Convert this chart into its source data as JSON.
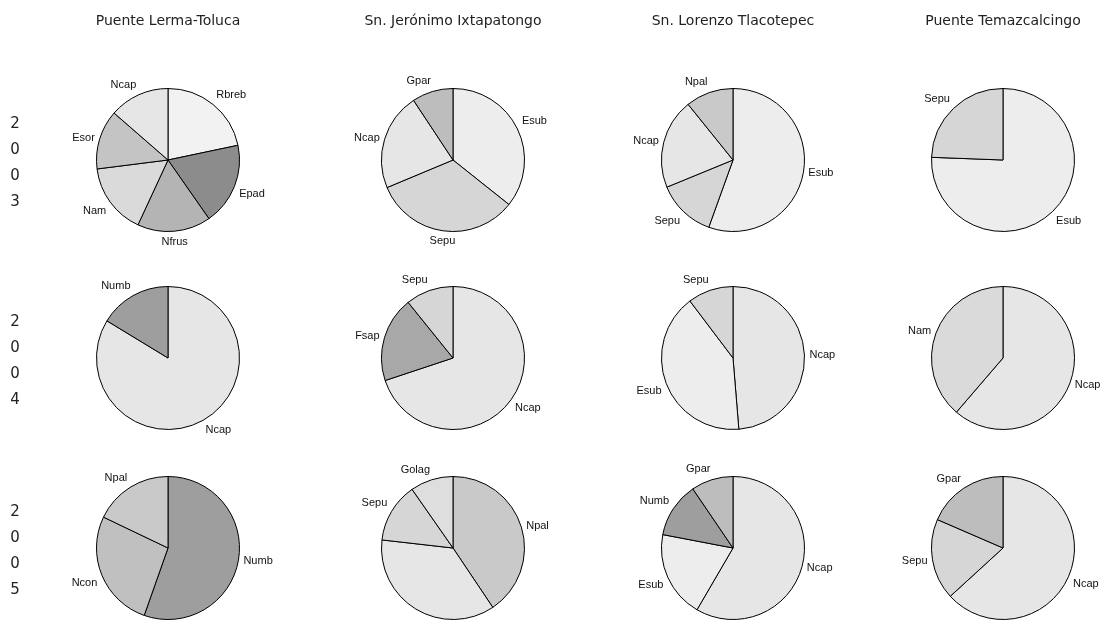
{
  "chart_data": [
    {
      "type": "pie",
      "title": "Puente Lerma-Toluca",
      "ylabel": "2003",
      "categories": [
        "Rbreb",
        "Epad",
        "Nfrus",
        "Nam",
        "Esor",
        "Ncap"
      ],
      "values": [
        21.7,
        18.6,
        16.6,
        16.1,
        13.4,
        13.6
      ],
      "colors": [
        "#f2f2f2",
        "#8c8c8c",
        "#b4b4b4",
        "#dadada",
        "#c4c4c4",
        "#e6e6e6"
      ],
      "legend": false
    },
    {
      "type": "pie",
      "title": "Sn. Jerónimo Ixtapatongo",
      "categories": [
        "Esub",
        "Sepu",
        "Ncap",
        "Gpar"
      ],
      "values": [
        35.7,
        33,
        22,
        9.3
      ],
      "colors": [
        "#ededed",
        "#d6d6d6",
        "#e6e6e6",
        "#bdbdbd"
      ],
      "legend": false
    },
    {
      "type": "pie",
      "title": "Sn. Lorenzo Tlacotepec",
      "categories": [
        "Esub",
        "Sepu",
        "Ncap",
        "Npal"
      ],
      "values": [
        55.5,
        13.3,
        20.4,
        10.8
      ],
      "colors": [
        "#ededed",
        "#d6d6d6",
        "#e6e6e6",
        "#c9c9c9"
      ],
      "legend": false
    },
    {
      "type": "pie",
      "title": "Puente Temazcalcingo",
      "categories": [
        "Esub",
        "Sepu"
      ],
      "values": [
        75.6,
        24.4
      ],
      "colors": [
        "#ededed",
        "#d6d6d6"
      ],
      "legend": false
    },
    {
      "type": "pie",
      "ylabel": "2004",
      "categories": [
        "Ncap",
        "Numb"
      ],
      "values": [
        83.7,
        16.3
      ],
      "colors": [
        "#e6e6e6",
        "#9e9e9e"
      ],
      "legend": false
    },
    {
      "type": "pie",
      "categories": [
        "Ncap",
        "Fsap",
        "Sepu"
      ],
      "values": [
        69.9,
        19.3,
        10.8
      ],
      "colors": [
        "#e6e6e6",
        "#a8a8a8",
        "#d6d6d6"
      ],
      "legend": false
    },
    {
      "type": "pie",
      "categories": [
        "Ncap",
        "Esub",
        "Sepu"
      ],
      "values": [
        48.7,
        41,
        10.3
      ],
      "colors": [
        "#e6e6e6",
        "#ededed",
        "#d6d6d6"
      ],
      "legend": false
    },
    {
      "type": "pie",
      "categories": [
        "Ncap",
        "Nam"
      ],
      "values": [
        61.3,
        38.7
      ],
      "colors": [
        "#e6e6e6",
        "#dadada"
      ],
      "legend": false
    },
    {
      "type": "pie",
      "ylabel": "2005",
      "categories": [
        "Numb",
        "Ncon",
        "Npal"
      ],
      "values": [
        55.4,
        26.7,
        17.9
      ],
      "colors": [
        "#9e9e9e",
        "#c0c0c0",
        "#c9c9c9"
      ],
      "legend": false
    },
    {
      "type": "pie",
      "categories": [
        "Npal",
        null,
        "Sepu",
        "Golag"
      ],
      "values": [
        40.6,
        36.2,
        13.5,
        9.7
      ],
      "colors": [
        "#c9c9c9",
        "#e6e6e6",
        "#d6d6d6",
        "#dedede"
      ],
      "legend": false
    },
    {
      "type": "pie",
      "categories": [
        "Ncap",
        "Esub",
        "Numb",
        "Gpar"
      ],
      "values": [
        58.4,
        19.6,
        12.5,
        9.5
      ],
      "colors": [
        "#e6e6e6",
        "#ededed",
        "#9e9e9e",
        "#bdbdbd"
      ],
      "legend": false
    },
    {
      "type": "pie",
      "categories": [
        "Ncap",
        "Sepu",
        "Gpar"
      ],
      "values": [
        63.2,
        18.3,
        18.5
      ],
      "colors": [
        "#e6e6e6",
        "#d6d6d6",
        "#bdbdbd"
      ],
      "legend": false
    }
  ]
}
